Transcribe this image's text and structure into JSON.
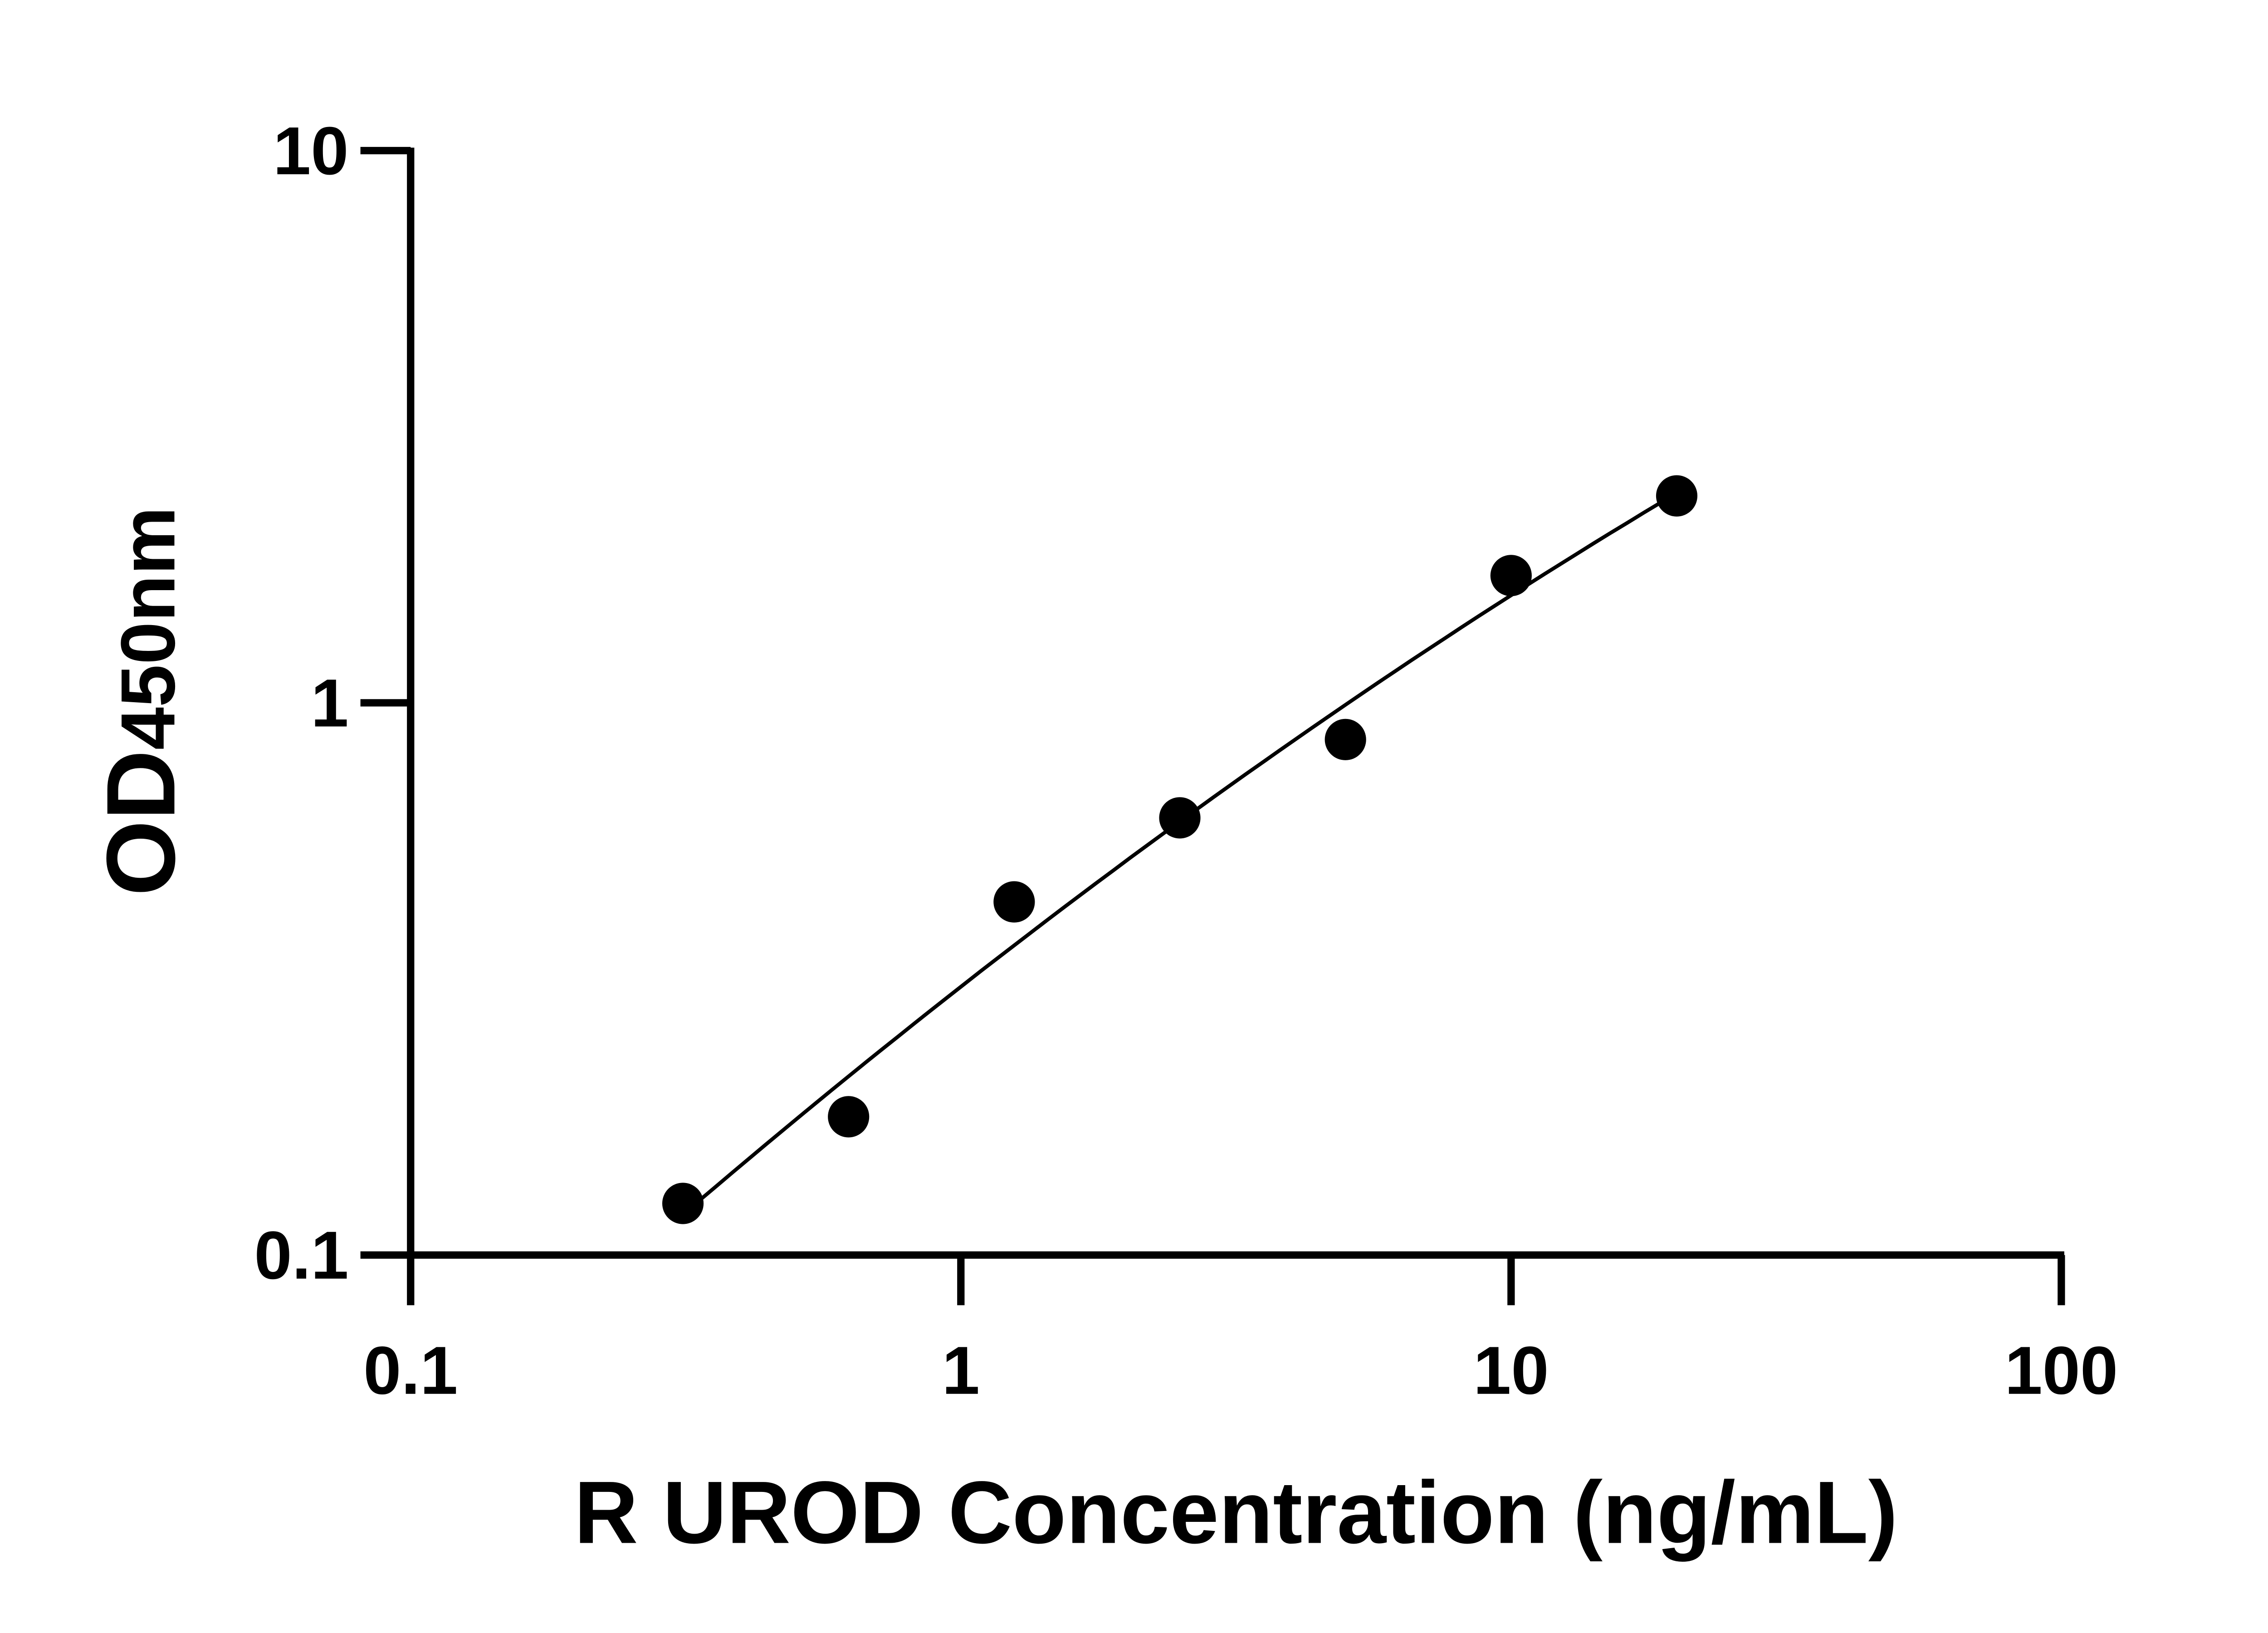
{
  "chart_data": {
    "type": "scatter",
    "title": "",
    "xlabel": "R UROD Concentration (ng/mL)",
    "ylabel": "OD450nm",
    "ylabel_main": "OD",
    "ylabel_sub": "450nm",
    "x_scale": "log",
    "y_scale": "log",
    "xlim": [
      0.1,
      100
    ],
    "ylim": [
      0.1,
      10
    ],
    "x_ticks": [
      "0.1",
      "1",
      "10",
      "100"
    ],
    "y_ticks": [
      "0.1",
      "1",
      "10"
    ],
    "grid": false,
    "legend": "none",
    "fit_curve": true,
    "points": [
      {
        "x": 0.3125,
        "y": 0.124
      },
      {
        "x": 0.625,
        "y": 0.178
      },
      {
        "x": 1.25,
        "y": 0.436
      },
      {
        "x": 2.5,
        "y": 0.619
      },
      {
        "x": 5,
        "y": 0.858
      },
      {
        "x": 10,
        "y": 1.7
      },
      {
        "x": 20,
        "y": 2.37
      }
    ],
    "colors": {
      "points": "#000000",
      "line": "#000000",
      "axes": "#000000"
    }
  }
}
